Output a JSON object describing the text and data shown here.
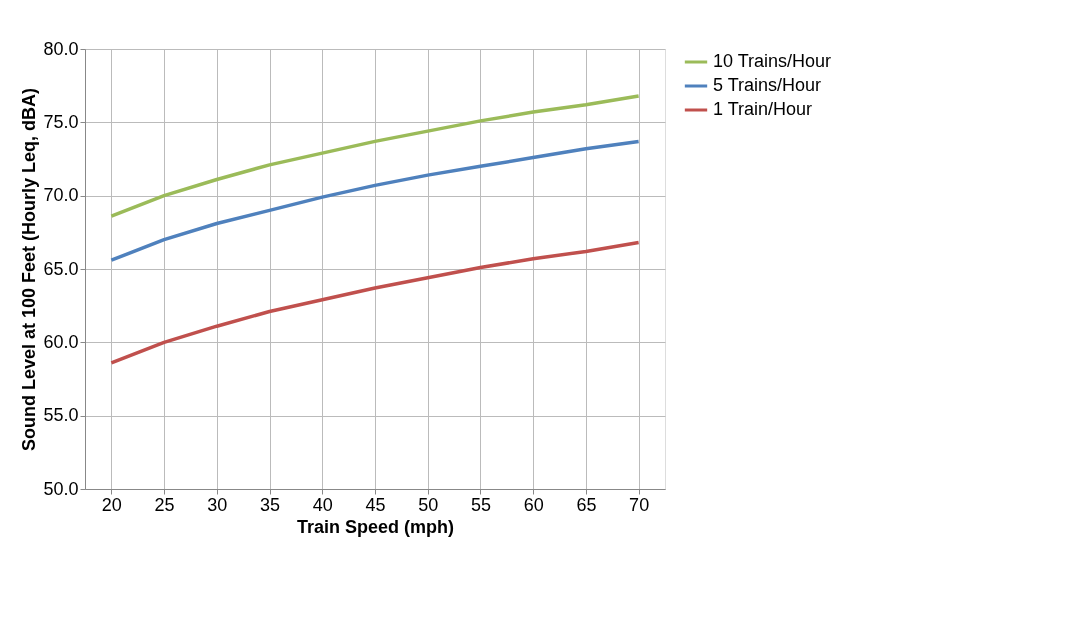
{
  "chart_data": {
    "type": "line",
    "xlabel": "Train Speed (mph)",
    "ylabel": "Sound Level at 100 Feet (Hourly Leq, dBA)",
    "categories": [
      "20",
      "25",
      "30",
      "35",
      "40",
      "45",
      "50",
      "55",
      "60",
      "65",
      "70"
    ],
    "series": [
      {
        "name": "10 Trains/Hour",
        "color": "#9bbb59",
        "values": [
          68.6,
          70.0,
          71.1,
          72.1,
          72.9,
          73.7,
          74.4,
          75.1,
          75.7,
          76.2,
          76.8
        ]
      },
      {
        "name": "5 Trains/Hour",
        "color": "#4f81bd",
        "values": [
          65.6,
          67.0,
          68.1,
          69.0,
          69.9,
          70.7,
          71.4,
          72.0,
          72.6,
          73.2,
          73.7
        ]
      },
      {
        "name": "1 Train/Hour",
        "color": "#c0504d",
        "values": [
          58.6,
          60.0,
          61.1,
          62.1,
          62.9,
          63.7,
          64.4,
          65.1,
          65.7,
          66.2,
          66.8
        ]
      }
    ],
    "ylim": [
      50,
      80
    ],
    "yticks": [
      {
        "value": 50,
        "label": "50.0"
      },
      {
        "value": 55,
        "label": "55.0"
      },
      {
        "value": 60,
        "label": "60.0"
      },
      {
        "value": 65,
        "label": "65.0"
      },
      {
        "value": 70,
        "label": "70.0"
      },
      {
        "value": 75,
        "label": "75.0"
      },
      {
        "value": 80,
        "label": "80.0"
      }
    ],
    "grid": true,
    "legend": "right",
    "marker": "none",
    "line_style": "solid"
  }
}
